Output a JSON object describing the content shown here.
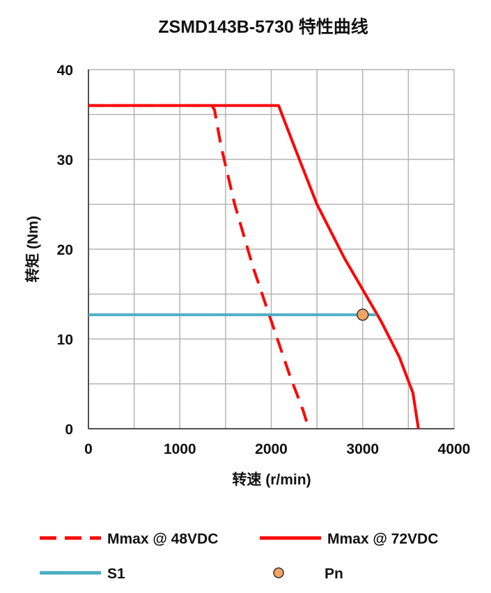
{
  "chart_data": {
    "type": "line",
    "title": "ZSMD143B-5730 特性曲线",
    "xlabel": "转速 (r/min)",
    "ylabel": "转矩 (Nm)",
    "xlim": [
      0,
      4000
    ],
    "ylim": [
      0,
      40
    ],
    "xticks": [
      0,
      1000,
      2000,
      3000,
      4000
    ],
    "yticks": [
      0,
      10,
      20,
      30,
      40
    ],
    "xtick_labels": [
      "0",
      "1000",
      "2000",
      "3000",
      "4000"
    ],
    "ytick_labels": [
      "0",
      "10",
      "20",
      "30",
      "40"
    ],
    "x_minor_step": 500,
    "y_minor_step": 5,
    "grid": true,
    "legend_position": "bottom",
    "series": [
      {
        "name": "Mmax @ 48VDC",
        "style": "dashed",
        "color": "#ff0000",
        "x": [
          0,
          1350,
          1380,
          1450,
          1600,
          1800,
          2000,
          2200,
          2350,
          2410
        ],
        "y": [
          36,
          36,
          35.5,
          31.5,
          25,
          18,
          12,
          6,
          2,
          0
        ]
      },
      {
        "name": "Mmax @ 72VDC",
        "style": "solid",
        "color": "#ff0000",
        "x": [
          0,
          2080,
          2250,
          2500,
          2800,
          3000,
          3200,
          3400,
          3550,
          3610
        ],
        "y": [
          36,
          36,
          31.5,
          25,
          19,
          15.5,
          12,
          8,
          4,
          0
        ]
      },
      {
        "name": "S1",
        "style": "solid",
        "color": "#4aaec4",
        "x": [
          0,
          3150
        ],
        "y": [
          12.7,
          12.7
        ]
      },
      {
        "name": "Pn",
        "style": "point",
        "color": "#f4a460",
        "x": [
          3000
        ],
        "y": [
          12.7
        ]
      }
    ]
  }
}
